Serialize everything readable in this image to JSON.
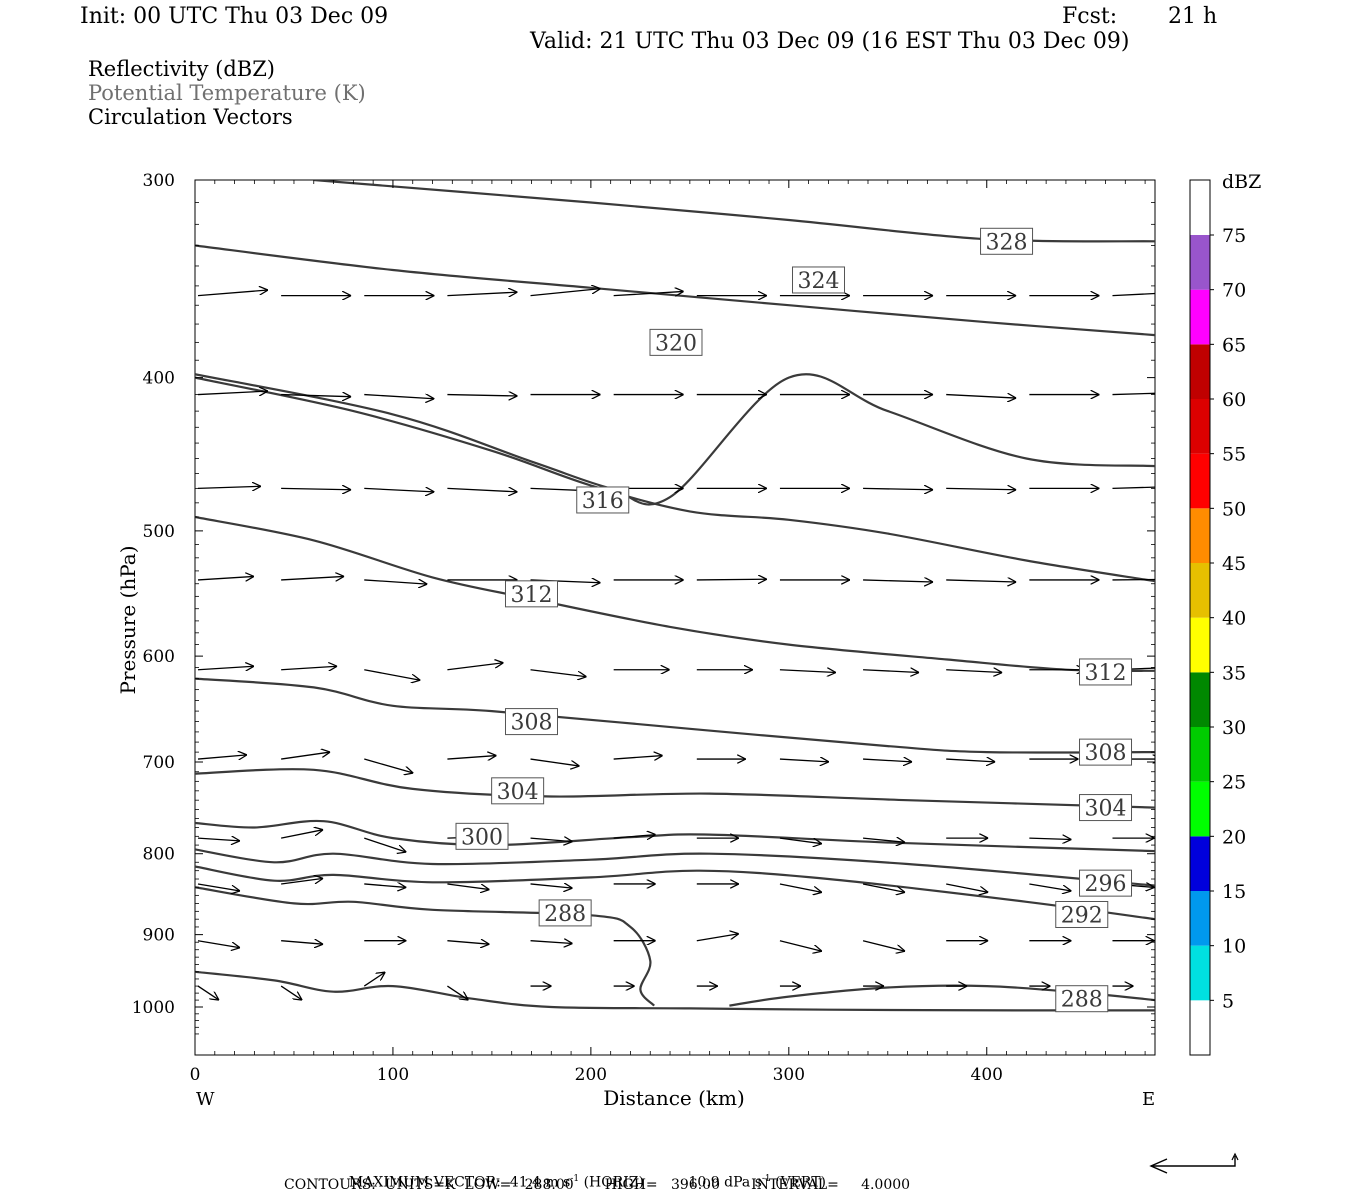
{
  "header": {
    "init": "Init: 00 UTC Thu 03 Dec 09",
    "fcst_label": "Fcst:",
    "fcst_value": "21 h",
    "valid": "Valid: 21 UTC Thu 03 Dec 09 (16 EST Thu 03 Dec 09)"
  },
  "fields": [
    {
      "label": "Reflectivity (dBZ)",
      "color": "#000000"
    },
    {
      "label": "Potential Temperature (K)",
      "color": "#707070"
    },
    {
      "label": "Circulation Vectors",
      "color": "#000000"
    }
  ],
  "footer": {
    "max_vector_label": "MAXIMUM VECTOR:",
    "max_vector_horiz": "41.4 m s",
    "horiz_tag": "(HORIZ)",
    "max_vector_vert": "10.9 dPa s",
    "vert_tag": "(VERT)",
    "exponent": "-1",
    "contours_line": "CONTOURS:  UNITS=K  LOW=   288.00       HIGH=   396.00       INTERVAL=     4.0000"
  },
  "chart_data": {
    "type": "line",
    "subtype": "vertical-cross-section",
    "xlabel": "Distance (km)",
    "ylabel": "Pressure (hPa)",
    "xlim": [
      0,
      485
    ],
    "ylim": [
      1040,
      300
    ],
    "y_scale": "log-pressure (inverted)",
    "x_ticks": [
      0,
      100,
      200,
      300,
      400
    ],
    "y_ticks": [
      300,
      400,
      500,
      600,
      700,
      800,
      900,
      1000
    ],
    "x_end_labels": {
      "left": "W",
      "right": "E"
    },
    "colorbar": {
      "title": "dBZ",
      "levels": [
        5,
        10,
        15,
        20,
        25,
        30,
        35,
        40,
        45,
        50,
        55,
        60,
        65,
        70,
        75
      ],
      "colors": [
        "#ffffff",
        "#00e0e0",
        "#0099ee",
        "#0000dd",
        "#00ff00",
        "#00cc00",
        "#008800",
        "#ffff00",
        "#e6c000",
        "#ff8c00",
        "#ff0000",
        "#dd0000",
        "#c00000",
        "#ff00ff",
        "#9955cc",
        "#ffffff"
      ]
    },
    "theta_contours": [
      {
        "level": 328,
        "points": [
          [
            60,
            300
          ],
          [
            200,
            310
          ],
          [
            300,
            318
          ],
          [
            400,
            327
          ],
          [
            485,
            328
          ]
        ],
        "labels": [
          [
            410,
            328
          ]
        ]
      },
      {
        "level": 324,
        "points": [
          [
            0,
            330
          ],
          [
            100,
            342
          ],
          [
            200,
            351
          ],
          [
            300,
            360
          ],
          [
            400,
            369
          ],
          [
            485,
            376
          ]
        ],
        "labels": [
          [
            315,
            347
          ]
        ]
      },
      {
        "level": 320,
        "points": [
          [
            0,
            398
          ],
          [
            100,
            422
          ],
          [
            170,
            452
          ],
          [
            210,
            470
          ],
          [
            240,
            476
          ],
          [
            300,
            400
          ],
          [
            350,
            420
          ],
          [
            420,
            450
          ],
          [
            485,
            455
          ]
        ],
        "labels": [
          [
            243,
            380
          ]
        ]
      },
      {
        "level": 316,
        "points": [
          [
            0,
            400
          ],
          [
            80,
            420
          ],
          [
            150,
            445
          ],
          [
            200,
            468
          ],
          [
            250,
            486
          ],
          [
            300,
            492
          ],
          [
            350,
            502
          ],
          [
            420,
            522
          ],
          [
            485,
            538
          ]
        ],
        "labels": [
          [
            206,
            478
          ]
        ]
      },
      {
        "level": 312,
        "points": [
          [
            0,
            490
          ],
          [
            60,
            507
          ],
          [
            120,
            535
          ],
          [
            170,
            552
          ],
          [
            240,
            575
          ],
          [
            300,
            590
          ],
          [
            380,
            603
          ],
          [
            440,
            612
          ],
          [
            485,
            613
          ]
        ],
        "labels": [
          [
            170,
            548
          ],
          [
            460,
            614
          ]
        ]
      },
      {
        "level": 308,
        "points": [
          [
            0,
            620
          ],
          [
            60,
            628
          ],
          [
            100,
            645
          ],
          [
            150,
            650
          ],
          [
            250,
            667
          ],
          [
            350,
            684
          ],
          [
            400,
            690
          ],
          [
            485,
            690
          ]
        ],
        "labels": [
          [
            170,
            660
          ],
          [
            460,
            690
          ]
        ]
      },
      {
        "level": 304,
        "points": [
          [
            0,
            712
          ],
          [
            60,
            708
          ],
          [
            110,
            728
          ],
          [
            180,
            736
          ],
          [
            260,
            733
          ],
          [
            360,
            740
          ],
          [
            485,
            748
          ]
        ],
        "labels": [
          [
            163,
            730
          ],
          [
            460,
            748
          ]
        ]
      },
      {
        "level": 300,
        "points": [
          [
            0,
            765
          ],
          [
            30,
            770
          ],
          [
            65,
            763
          ],
          [
            100,
            782
          ],
          [
            150,
            790
          ],
          [
            220,
            781
          ],
          [
            260,
            778
          ],
          [
            350,
            787
          ],
          [
            485,
            797
          ]
        ],
        "labels": [
          [
            145,
            780
          ]
        ]
      },
      {
        "level": 296,
        "points": [
          [
            0,
            795
          ],
          [
            40,
            810
          ],
          [
            70,
            800
          ],
          [
            120,
            812
          ],
          [
            200,
            807
          ],
          [
            260,
            800
          ],
          [
            360,
            812
          ],
          [
            485,
            838
          ]
        ],
        "labels": [
          [
            460,
            835
          ]
        ]
      },
      {
        "level": 292,
        "points": [
          [
            0,
            815
          ],
          [
            40,
            832
          ],
          [
            70,
            825
          ],
          [
            120,
            834
          ],
          [
            200,
            828
          ],
          [
            255,
            820
          ],
          [
            320,
            830
          ],
          [
            420,
            858
          ],
          [
            485,
            880
          ]
        ],
        "labels": [
          [
            448,
            874
          ]
        ]
      },
      {
        "level": 288,
        "points": [
          [
            0,
            840
          ],
          [
            50,
            860
          ],
          [
            80,
            858
          ],
          [
            120,
            868
          ],
          [
            200,
            875
          ],
          [
            220,
            890
          ],
          [
            230,
            935
          ],
          [
            225,
            975
          ],
          [
            232,
            998
          ]
        ],
        "labels": [
          [
            187,
            872
          ],
          [
            448,
            988
          ]
        ]
      },
      {
        "level": 288,
        "points": [
          [
            0,
            950
          ],
          [
            40,
            962
          ],
          [
            70,
            978
          ],
          [
            100,
            970
          ],
          [
            140,
            988
          ],
          [
            180,
            1000
          ],
          [
            250,
            1002
          ],
          [
            320,
            1004
          ],
          [
            420,
            1005
          ],
          [
            485,
            1005
          ]
        ],
        "labels": []
      },
      {
        "level": 288,
        "points": [
          [
            270,
            998
          ],
          [
            300,
            985
          ],
          [
            350,
            972
          ],
          [
            400,
            970
          ],
          [
            450,
            980
          ],
          [
            485,
            990
          ]
        ],
        "labels": []
      }
    ],
    "vectors": {
      "x_points": [
        0,
        42,
        84,
        126,
        168,
        210,
        252,
        294,
        336,
        378,
        420,
        462
      ],
      "rows": [
        {
          "p": 355,
          "u": [
            1.0,
            1.0,
            1.0,
            1.0,
            1.0,
            1.0,
            1.0,
            1.0,
            1.0,
            1.0,
            1.0,
            1.0
          ],
          "v": [
            -0.08,
            0,
            0,
            -0.05,
            -0.1,
            -0.06,
            0,
            0,
            0,
            0,
            0,
            -0.05
          ]
        },
        {
          "p": 410,
          "u": [
            1.0,
            1.0,
            1.0,
            1.0,
            1.0,
            1.0,
            1.0,
            1.0,
            1.0,
            1.0,
            1.0,
            1.0
          ],
          "v": [
            -0.05,
            0.03,
            0.06,
            0.02,
            0,
            0,
            0,
            0,
            0,
            0.05,
            0,
            -0.03
          ]
        },
        {
          "p": 470,
          "u": [
            0.9,
            1.0,
            1.0,
            1.0,
            1.0,
            1.0,
            1.0,
            1.0,
            1.0,
            1.0,
            1.0,
            1.0
          ],
          "v": [
            -0.03,
            0.02,
            0.05,
            0.05,
            0.04,
            0,
            0,
            0,
            0.02,
            0.02,
            0,
            -0.03
          ]
        },
        {
          "p": 537,
          "u": [
            0.8,
            0.9,
            0.9,
            1.0,
            1.0,
            1.0,
            1.0,
            1.0,
            1.0,
            1.0,
            1.0,
            1.0
          ],
          "v": [
            -0.05,
            -0.05,
            0.06,
            0,
            0.04,
            0,
            -0.01,
            0,
            0.03,
            0.03,
            0,
            -0.01
          ]
        },
        {
          "p": 612,
          "u": [
            0.8,
            0.8,
            0.8,
            0.8,
            0.8,
            0.8,
            0.8,
            0.8,
            0.8,
            0.8,
            0.8,
            0.8
          ],
          "v": [
            -0.05,
            -0.05,
            0.15,
            -0.1,
            0.1,
            0,
            0,
            0.04,
            0.04,
            0.04,
            0,
            -0.03
          ]
        },
        {
          "p": 697,
          "u": [
            0.7,
            0.7,
            0.7,
            0.7,
            0.7,
            0.7,
            0.7,
            0.7,
            0.7,
            0.7,
            0.7,
            0.7
          ],
          "v": [
            -0.06,
            -0.1,
            0.2,
            -0.05,
            0.1,
            -0.05,
            0,
            0.04,
            0.04,
            0.04,
            0,
            0
          ]
        },
        {
          "p": 782,
          "u": [
            0.6,
            0.6,
            0.6,
            0.6,
            0.6,
            0.6,
            0.6,
            0.6,
            0.6,
            0.6,
            0.6,
            0.6
          ],
          "v": [
            0.04,
            -0.12,
            0.2,
            -0.02,
            0.05,
            -0.05,
            0,
            0.08,
            0.06,
            0,
            0.02,
            0
          ]
        },
        {
          "p": 836,
          "u": [
            0.6,
            0.6,
            0.6,
            0.6,
            0.6,
            0.6,
            0.6,
            0.6,
            0.6,
            0.6,
            0.6,
            0.6
          ],
          "v": [
            0.1,
            -0.08,
            0.05,
            0.08,
            0.06,
            0,
            0,
            0.12,
            0.12,
            0.12,
            0.1,
            0.05
          ]
        },
        {
          "p": 908,
          "u": [
            0.6,
            0.6,
            0.6,
            0.6,
            0.6,
            0.6,
            0.6,
            0.6,
            0.6,
            0.6,
            0.6,
            0.6
          ],
          "v": [
            0.1,
            0.05,
            0,
            0.05,
            0.04,
            0,
            -0.1,
            0.15,
            0.15,
            0,
            0,
            0
          ]
        },
        {
          "p": 970,
          "u": [
            0.3,
            0.3,
            0.3,
            0.3,
            0.3,
            0.3,
            0.3,
            0.3,
            0.3,
            0.3,
            0.3,
            0.3
          ],
          "v": [
            0.2,
            0.2,
            -0.2,
            0.2,
            0,
            0,
            0,
            0,
            0,
            0,
            0,
            0
          ]
        }
      ]
    }
  }
}
